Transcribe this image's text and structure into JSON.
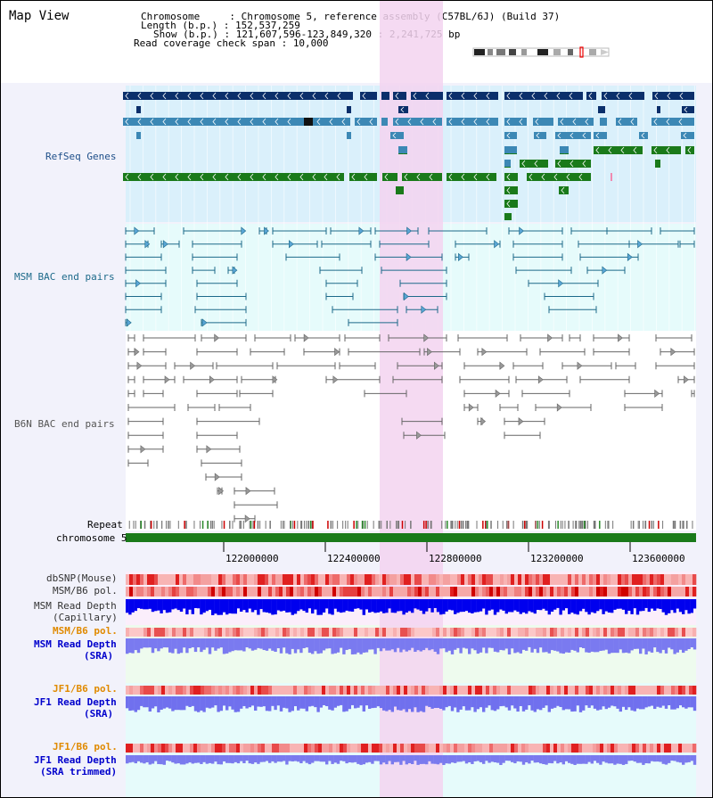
{
  "header": {
    "title": "Map View",
    "chromosome_key": "Chromosome     : ",
    "chromosome": "Chromosome 5, reference assembly (C57BL/6J) (Build 37)",
    "length_key": "Length (b.p.) : ",
    "length": "152,537,259",
    "show_key": "Show (b.p.) : ",
    "show": "121,607,596-123,849,320 : 2,241,725 bp",
    "span_key": "Read coverage check span : ",
    "span": "10,000"
  },
  "tracks": {
    "refseq": "RefSeq Genes",
    "msm_bac": "MSM BAC end pairs",
    "b6n_bac": "B6N BAC end pairs",
    "repeat": "Repeat",
    "chromosome": "chromosome 5",
    "dbsnp": "dbSNP(Mouse)",
    "msm_pol": "MSM/B6 pol.",
    "msm_depth_cap_1": "MSM Read Depth",
    "msm_depth_cap_2": "(Capillary)",
    "msm_pol_sra": "MSM/B6 pol.",
    "msm_depth_sra_1": "MSM Read Depth",
    "msm_depth_sra_2": "(SRA)",
    "jf1_pol": "JF1/B6 pol.",
    "jf1_depth_1": "JF1 Read Depth",
    "jf1_depth_2": "(SRA)",
    "jf1_pol_trim": "JF1/B6 pol.",
    "jf1_depth_trim_1": "JF1 Read Depth",
    "jf1_depth_trim_2": "(SRA trimmed)"
  },
  "axis": {
    "ticks": [
      "122000000",
      "122400000",
      "122800000",
      "123200000",
      "123600000"
    ]
  },
  "colors": {
    "refseq_dark": "#0b2f6b",
    "refseq_mid": "#3c88b5",
    "refseq_green": "#1a7a1a",
    "msm_bac": "#1d6a8a",
    "b6n_bac": "#555555",
    "highlight": "#f3d4f0",
    "msm_label": "#20508a",
    "orange_label": "#e08a00",
    "blue_label": "#0000cc"
  }
}
